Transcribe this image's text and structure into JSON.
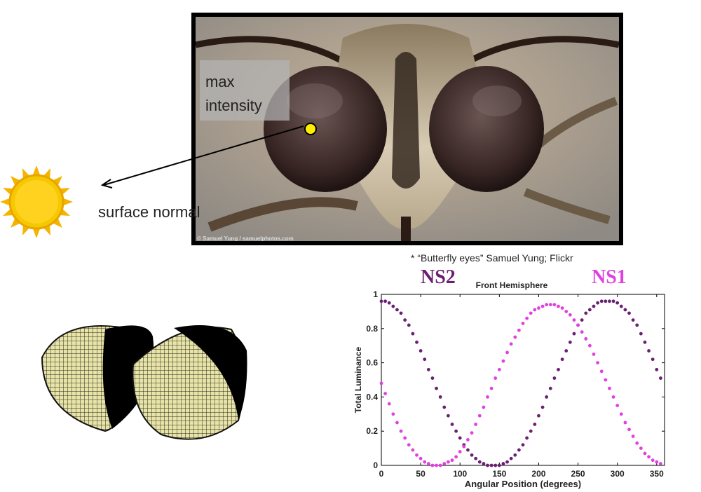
{
  "photo": {
    "label": "max intensity",
    "credit": "© Samuel Yung / samuelphotos.com",
    "caption": "* “Butterfly eyes” Samuel Yung; Flickr"
  },
  "annotation": {
    "surface_normal": "surface normal"
  },
  "series_labels": {
    "ns2": "NS2",
    "ns1": "NS1"
  },
  "colors": {
    "ns2": "#6b1f72",
    "ns1": "#e040e0",
    "sun": "#f5c800",
    "eye_mesh": "#e8e4a8"
  },
  "chart_data": {
    "type": "scatter",
    "title": "Front Hemisphere",
    "xlabel": "Angular Position (degrees)",
    "ylabel": "Total Luminance",
    "xlim": [
      0,
      360
    ],
    "ylim": [
      0,
      1
    ],
    "xticks": [
      0,
      50,
      100,
      150,
      200,
      250,
      300,
      350
    ],
    "yticks": [
      0,
      0.2,
      0.4,
      0.6,
      0.8,
      1
    ],
    "series": [
      {
        "name": "NS2",
        "color": "#6b1f72",
        "x": [
          0,
          5,
          10,
          15,
          20,
          25,
          30,
          35,
          40,
          45,
          50,
          55,
          60,
          65,
          70,
          75,
          80,
          85,
          90,
          95,
          100,
          105,
          110,
          115,
          120,
          125,
          130,
          135,
          140,
          145,
          150,
          155,
          160,
          165,
          170,
          175,
          180,
          185,
          190,
          195,
          200,
          205,
          210,
          215,
          220,
          225,
          230,
          235,
          240,
          245,
          250,
          255,
          260,
          265,
          270,
          275,
          280,
          285,
          290,
          295,
          300,
          305,
          310,
          315,
          320,
          325,
          330,
          335,
          340,
          345,
          350,
          355
        ],
        "y": [
          0.96,
          0.96,
          0.95,
          0.93,
          0.91,
          0.89,
          0.85,
          0.82,
          0.77,
          0.72,
          0.67,
          0.62,
          0.56,
          0.51,
          0.45,
          0.4,
          0.34,
          0.29,
          0.24,
          0.2,
          0.16,
          0.12,
          0.09,
          0.06,
          0.04,
          0.02,
          0.01,
          0.0,
          0.0,
          0.0,
          0.0,
          0.01,
          0.02,
          0.04,
          0.06,
          0.09,
          0.12,
          0.16,
          0.2,
          0.24,
          0.29,
          0.34,
          0.4,
          0.45,
          0.51,
          0.56,
          0.62,
          0.67,
          0.72,
          0.77,
          0.82,
          0.85,
          0.89,
          0.91,
          0.93,
          0.95,
          0.96,
          0.96,
          0.96,
          0.96,
          0.95,
          0.93,
          0.91,
          0.89,
          0.85,
          0.82,
          0.77,
          0.72,
          0.67,
          0.62,
          0.56,
          0.51
        ]
      },
      {
        "name": "NS1",
        "color": "#e040e0",
        "x": [
          0,
          5,
          10,
          15,
          20,
          25,
          30,
          35,
          40,
          45,
          50,
          55,
          60,
          65,
          70,
          75,
          80,
          85,
          90,
          95,
          100,
          105,
          110,
          115,
          120,
          125,
          130,
          135,
          140,
          145,
          150,
          155,
          160,
          165,
          170,
          175,
          180,
          185,
          190,
          195,
          200,
          205,
          210,
          215,
          220,
          225,
          230,
          235,
          240,
          245,
          250,
          255,
          260,
          265,
          270,
          275,
          280,
          285,
          290,
          295,
          300,
          305,
          310,
          315,
          320,
          325,
          330,
          335,
          340,
          345,
          350,
          355
        ],
        "y": [
          0.48,
          0.42,
          0.36,
          0.3,
          0.25,
          0.2,
          0.16,
          0.12,
          0.09,
          0.06,
          0.04,
          0.02,
          0.01,
          0.0,
          0.0,
          0.0,
          0.01,
          0.02,
          0.03,
          0.05,
          0.08,
          0.11,
          0.15,
          0.19,
          0.24,
          0.29,
          0.34,
          0.4,
          0.45,
          0.51,
          0.56,
          0.61,
          0.66,
          0.71,
          0.75,
          0.79,
          0.83,
          0.86,
          0.89,
          0.91,
          0.92,
          0.93,
          0.94,
          0.94,
          0.94,
          0.93,
          0.92,
          0.9,
          0.88,
          0.85,
          0.82,
          0.78,
          0.74,
          0.7,
          0.65,
          0.6,
          0.55,
          0.5,
          0.45,
          0.4,
          0.35,
          0.3,
          0.25,
          0.21,
          0.17,
          0.13,
          0.1,
          0.07,
          0.05,
          0.03,
          0.02,
          0.01
        ]
      }
    ]
  }
}
